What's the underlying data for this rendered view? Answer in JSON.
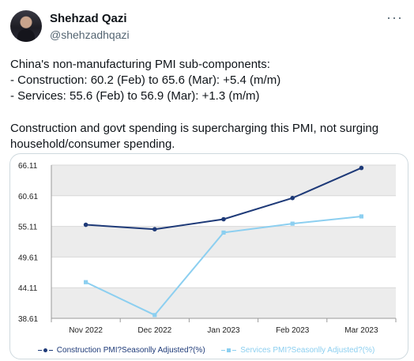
{
  "author": {
    "display_name": "Shehzad Qazi",
    "handle": "@shehzadhqazi",
    "avatar_icon": "avatar-photo"
  },
  "more_icon": "···",
  "tweet": {
    "line1": "China's non-manufacturing PMI sub-components:",
    "line2": "- Construction: 60.2 (Feb) to 65.6 (Mar): +5.4 (m/m)",
    "line3": "- Services: 55.6 (Feb) to 56.9 (Mar): +1.3 (m/m)",
    "line4": "Construction and govt spending is supercharging this PMI, not surging",
    "line5": "household/consumer spending."
  },
  "colors": {
    "construction": "#1e3a78",
    "services": "#8ccff0",
    "band": "#ececec"
  },
  "chart_data": {
    "type": "line",
    "categories": [
      "Nov 2022",
      "Dec 2022",
      "Jan 2023",
      "Feb 2023",
      "Mar 2023"
    ],
    "y_ticks": [
      "66.11",
      "60.61",
      "55.11",
      "49.61",
      "44.11",
      "38.61"
    ],
    "ylim": [
      38.61,
      66.11
    ],
    "grid": true,
    "legend_position": "bottom",
    "series": [
      {
        "name": "Construction PMI?Seasonlly Adjusted?(%)",
        "values": [
          55.4,
          54.6,
          56.4,
          60.2,
          65.6
        ]
      },
      {
        "name": "Services PMI?Seasonlly Adjusted?(%)",
        "values": [
          45.1,
          39.2,
          54.0,
          55.6,
          56.9
        ]
      }
    ]
  }
}
